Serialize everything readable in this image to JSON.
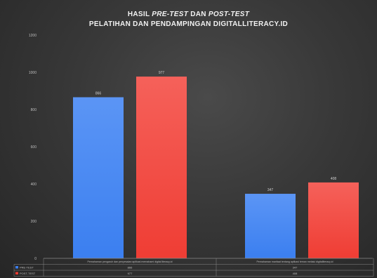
{
  "chart_data": {
    "type": "bar",
    "title": {
      "part1": "HASIL ",
      "part2": "PRE-TEST",
      "part3": " DAN ",
      "part4": "POST-TEST"
    },
    "subtitle": "PELATIHAN DAN PENDAMPINGAN DIGITALLITERACY.ID",
    "ylim": [
      0,
      1200
    ],
    "yticks": [
      0,
      200,
      400,
      600,
      800,
      1000,
      1200
    ],
    "grid": false,
    "categories": [
      "Pemahaman pengaruh dan penyesalan aplikasi memahami digital literacy.id",
      "Pemahaman manfaat tentang aplikasi teman melalui digitalliteracy.id"
    ],
    "series": [
      {
        "name": "PRE-TEST",
        "color": "#3b7ff0",
        "values": [
          866,
          347
        ]
      },
      {
        "name": "POST-TEST",
        "color": "#ef3d34",
        "values": [
          977,
          408
        ]
      }
    ],
    "data_labels": [
      "866",
      "977",
      "347",
      "408"
    ],
    "table": {
      "rows": [
        {
          "label": "PRE-TEST",
          "values": [
            "866",
            "347"
          ]
        },
        {
          "label": "POST-TEST",
          "values": [
            "977",
            "408"
          ]
        }
      ]
    }
  }
}
